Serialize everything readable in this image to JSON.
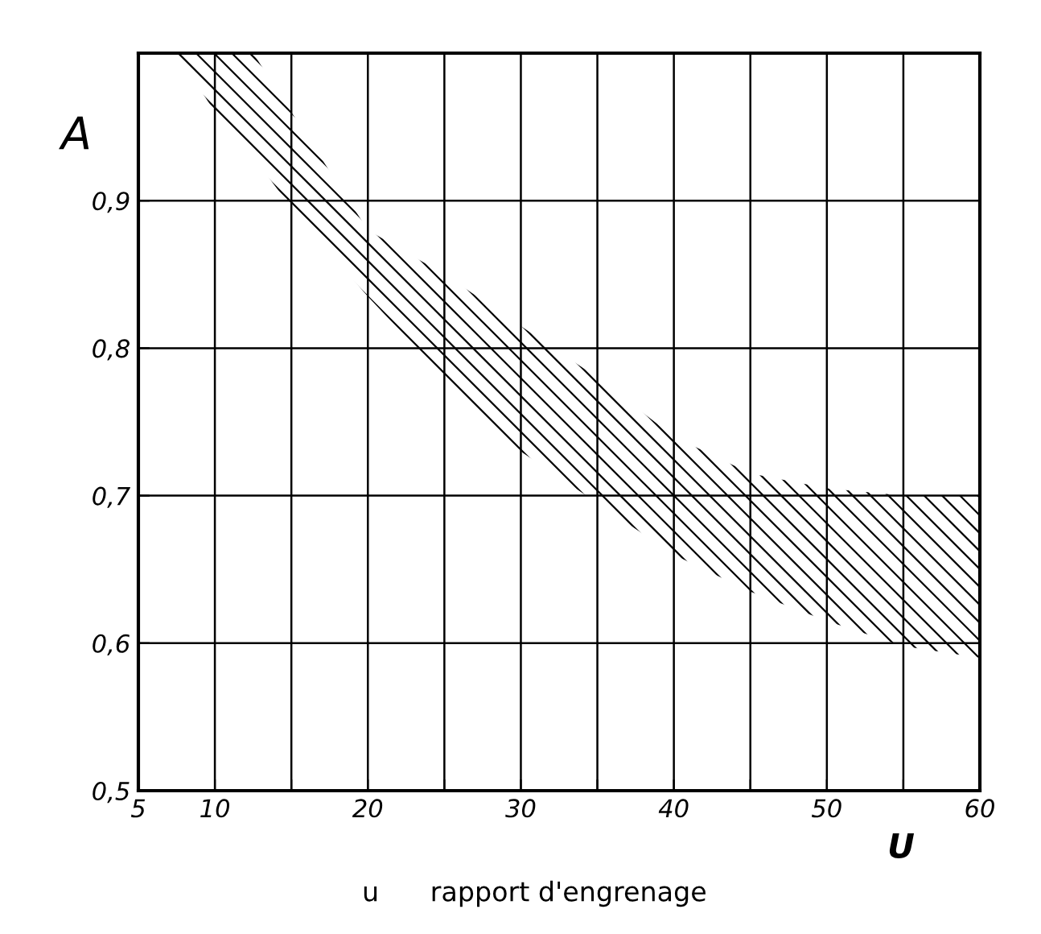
{
  "chart_data": {
    "type": "line",
    "ylabel": "A",
    "xlabel": "U",
    "annotations": [
      "u      rapport d'engrenage"
    ],
    "x": [
      7.5,
      10,
      12.5,
      15,
      20,
      25,
      30,
      35,
      40,
      45,
      50,
      55,
      60
    ],
    "series": [
      {
        "color": "#000000",
        "values": [
          null,
          null,
          null,
          null,
          null,
          null,
          null,
          null,
          null,
          null,
          null,
          null,
          null
        ],
        "lower": [
          1.0,
          0.96,
          0.93,
          0.895,
          0.835,
          0.78,
          0.73,
          0.695,
          0.66,
          0.635,
          0.615,
          0.598,
          0.59
        ],
        "upper": [
          1.0,
          1.0,
          1.0,
          0.96,
          0.88,
          0.85,
          0.815,
          0.78,
          0.74,
          0.715,
          0.705,
          0.7,
          0.7
        ]
      }
    ],
    "xlim": [
      5,
      60
    ],
    "ylim": [
      0.5,
      1.0
    ],
    "xticks": [
      5,
      10,
      {
        "value": 15,
        "label": null
      },
      20,
      {
        "value": 25,
        "label": null
      },
      30,
      {
        "value": 35,
        "label": null
      },
      40,
      {
        "value": 45,
        "label": null
      },
      50,
      {
        "value": 55,
        "label": null
      },
      60
    ],
    "yticks": [
      {
        "value": 0.5,
        "label": "0,5"
      },
      {
        "value": 0.6,
        "label": "0,6"
      },
      {
        "value": 0.7,
        "label": "0,7"
      },
      {
        "value": 0.8,
        "label": "0,8"
      },
      {
        "value": 0.9,
        "label": "0,9"
      },
      {
        "value": 1.0,
        "label": null
      }
    ],
    "grid": true
  }
}
